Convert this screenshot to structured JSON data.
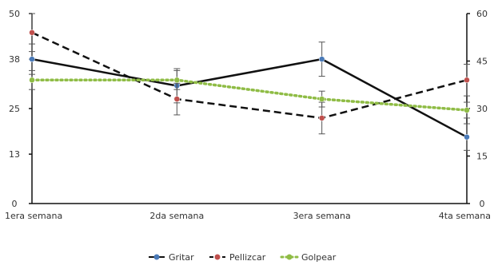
{
  "chart_data": {
    "type": "line",
    "categories": [
      "1era semana",
      "2da semana",
      "3era semana",
      "4ta semana"
    ],
    "left_axis": {
      "range": [
        0,
        50
      ],
      "ticks": [
        "0",
        "13",
        "25",
        "38",
        "50"
      ]
    },
    "right_axis": {
      "range": [
        0,
        60
      ],
      "ticks": [
        "0",
        "15",
        "30",
        "45",
        "60"
      ]
    },
    "series": [
      {
        "name": "Gritar",
        "axis": "left",
        "values": [
          38,
          31,
          38,
          17.5
        ],
        "error": [
          4,
          4.5,
          4.5,
          3.5
        ],
        "line_color": "#111111",
        "line_style": "solid",
        "marker_color": "#4a7ab8"
      },
      {
        "name": "Pellizcar",
        "axis": "right",
        "values": [
          54,
          33,
          27,
          39
        ],
        "error": [
          6,
          5,
          5,
          5
        ],
        "line_color": "#111111",
        "line_style": "dashed",
        "marker_color": "#c0504d"
      },
      {
        "name": "Golpear",
        "axis": "right",
        "values": [
          39,
          39,
          33,
          29.5
        ],
        "error": [
          3,
          3,
          2.5,
          2.5
        ],
        "line_color": "#8fbc45",
        "line_style": "dotted",
        "marker_color": "#8fbc45"
      }
    ],
    "grid": false,
    "legend_position": "bottom"
  }
}
